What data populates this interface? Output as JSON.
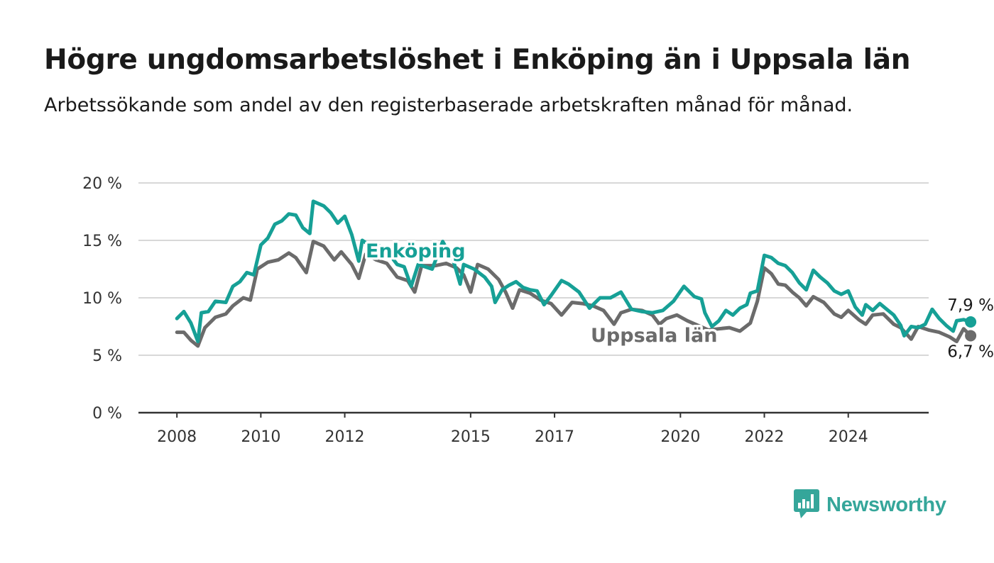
{
  "header": {
    "title": "Högre ungdomsarbetslöshet i Enköping än i Uppsala län",
    "subtitle": "Arbetssökande som andel av den registerbaserade arbetskraften månad för månad."
  },
  "brand": {
    "name": "Newsworthy",
    "icon": "bar-chart-speech-bubble-icon",
    "color": "#35a69a"
  },
  "chart_data": {
    "type": "line",
    "x_ticks": [
      "2008",
      "2010",
      "2012",
      "2015",
      "2017",
      "2020",
      "2022",
      "2024"
    ],
    "y_ticks": [
      "0 %",
      "5 %",
      "10 %",
      "15 %",
      "20 %"
    ],
    "ylim": [
      0,
      20
    ],
    "xlim": [
      "2007-02",
      "2025-12"
    ],
    "grid": true,
    "legend": "inline labels",
    "series": [
      {
        "name": "Enköping",
        "color": "#16a096",
        "end_label": "7,9 %",
        "points": [
          [
            "2008-01",
            8.2
          ],
          [
            "2008-03",
            8.8
          ],
          [
            "2008-05",
            7.8
          ],
          [
            "2008-07",
            6.2
          ],
          [
            "2008-08",
            8.7
          ],
          [
            "2008-10",
            8.8
          ],
          [
            "2008-12",
            9.7
          ],
          [
            "2009-03",
            9.6
          ],
          [
            "2009-05",
            11.0
          ],
          [
            "2009-07",
            11.4
          ],
          [
            "2009-09",
            12.2
          ],
          [
            "2009-11",
            12.0
          ],
          [
            "2010-01",
            14.6
          ],
          [
            "2010-03",
            15.2
          ],
          [
            "2010-05",
            16.4
          ],
          [
            "2010-07",
            16.7
          ],
          [
            "2010-09",
            17.3
          ],
          [
            "2010-11",
            17.2
          ],
          [
            "2011-01",
            16.1
          ],
          [
            "2011-03",
            15.6
          ],
          [
            "2011-04",
            18.4
          ],
          [
            "2011-07",
            18.0
          ],
          [
            "2011-09",
            17.4
          ],
          [
            "2011-11",
            16.5
          ],
          [
            "2012-01",
            17.1
          ],
          [
            "2012-03",
            15.5
          ],
          [
            "2012-05",
            13.2
          ],
          [
            "2012-06",
            15.0
          ],
          [
            "2012-08",
            14.6
          ],
          [
            "2012-10",
            14.6
          ],
          [
            "2012-12",
            14.4
          ],
          [
            "2013-02",
            13.7
          ],
          [
            "2013-04",
            12.9
          ],
          [
            "2013-06",
            12.7
          ],
          [
            "2013-08",
            11.0
          ],
          [
            "2013-10",
            12.9
          ],
          [
            "2014-02",
            12.5
          ],
          [
            "2014-05",
            14.9
          ],
          [
            "2014-08",
            13.3
          ],
          [
            "2014-10",
            11.2
          ],
          [
            "2014-11",
            12.9
          ],
          [
            "2015-02",
            12.5
          ],
          [
            "2015-05",
            11.8
          ],
          [
            "2015-07",
            11.0
          ],
          [
            "2015-08",
            9.6
          ],
          [
            "2015-10",
            10.7
          ],
          [
            "2015-12",
            11.1
          ],
          [
            "2016-02",
            11.4
          ],
          [
            "2016-04",
            10.9
          ],
          [
            "2016-06",
            10.7
          ],
          [
            "2016-08",
            10.6
          ],
          [
            "2016-10",
            9.4
          ],
          [
            "2016-12",
            10.2
          ],
          [
            "2017-03",
            11.5
          ],
          [
            "2017-05",
            11.2
          ],
          [
            "2017-08",
            10.5
          ],
          [
            "2017-11",
            9.1
          ],
          [
            "2018-02",
            10.0
          ],
          [
            "2018-05",
            10.0
          ],
          [
            "2018-08",
            10.5
          ],
          [
            "2018-11",
            9.0
          ],
          [
            "2019-02",
            8.8
          ],
          [
            "2019-05",
            8.7
          ],
          [
            "2019-08",
            8.9
          ],
          [
            "2019-11",
            9.7
          ],
          [
            "2020-02",
            11.0
          ],
          [
            "2020-05",
            10.1
          ],
          [
            "2020-07",
            9.9
          ],
          [
            "2020-08",
            8.7
          ],
          [
            "2020-10",
            7.5
          ],
          [
            "2020-12",
            8.0
          ],
          [
            "2021-02",
            8.9
          ],
          [
            "2021-04",
            8.5
          ],
          [
            "2021-06",
            9.1
          ],
          [
            "2021-08",
            9.4
          ],
          [
            "2021-09",
            10.4
          ],
          [
            "2021-11",
            10.6
          ],
          [
            "2022-01",
            13.7
          ],
          [
            "2022-03",
            13.5
          ],
          [
            "2022-05",
            13.0
          ],
          [
            "2022-07",
            12.8
          ],
          [
            "2022-09",
            12.2
          ],
          [
            "2022-11",
            11.3
          ],
          [
            "2023-01",
            10.7
          ],
          [
            "2023-03",
            12.4
          ],
          [
            "2023-05",
            11.8
          ],
          [
            "2023-07",
            11.3
          ],
          [
            "2023-09",
            10.6
          ],
          [
            "2023-11",
            10.3
          ],
          [
            "2024-01",
            10.6
          ],
          [
            "2024-03",
            9.2
          ],
          [
            "2024-05",
            8.5
          ],
          [
            "2024-06",
            9.4
          ],
          [
            "2024-08",
            8.9
          ],
          [
            "2024-10",
            9.5
          ],
          [
            "2024-12",
            9.0
          ],
          [
            "2025-02",
            8.5
          ],
          [
            "2025-04",
            7.6
          ],
          [
            "2025-05",
            6.7
          ],
          [
            "2025-07",
            7.5
          ],
          [
            "2025-09",
            7.4
          ],
          [
            "2025-11",
            7.7
          ],
          [
            "2026-01",
            9.0
          ],
          [
            "2026-03",
            8.2
          ],
          [
            "2026-05",
            7.6
          ],
          [
            "2026-07",
            7.1
          ],
          [
            "2026-08",
            8.0
          ],
          [
            "2026-10",
            8.1
          ],
          [
            "2026-12",
            7.9
          ]
        ]
      },
      {
        "name": "Uppsala län",
        "color": "#6b6b6b",
        "end_label": "6,7 %",
        "points": [
          [
            "2008-01",
            7.0
          ],
          [
            "2008-03",
            7.0
          ],
          [
            "2008-05",
            6.3
          ],
          [
            "2008-07",
            5.8
          ],
          [
            "2008-09",
            7.4
          ],
          [
            "2008-12",
            8.3
          ],
          [
            "2009-03",
            8.6
          ],
          [
            "2009-05",
            9.3
          ],
          [
            "2009-08",
            10.0
          ],
          [
            "2009-10",
            9.8
          ],
          [
            "2009-12",
            12.5
          ],
          [
            "2010-03",
            13.1
          ],
          [
            "2010-06",
            13.3
          ],
          [
            "2010-09",
            13.9
          ],
          [
            "2010-11",
            13.5
          ],
          [
            "2011-02",
            12.2
          ],
          [
            "2011-04",
            14.9
          ],
          [
            "2011-07",
            14.5
          ],
          [
            "2011-10",
            13.3
          ],
          [
            "2011-12",
            14.0
          ],
          [
            "2012-03",
            12.9
          ],
          [
            "2012-05",
            11.7
          ],
          [
            "2012-07",
            13.8
          ],
          [
            "2012-10",
            13.3
          ],
          [
            "2013-01",
            13.0
          ],
          [
            "2013-04",
            11.8
          ],
          [
            "2013-07",
            11.5
          ],
          [
            "2013-09",
            10.5
          ],
          [
            "2013-11",
            12.8
          ],
          [
            "2014-03",
            12.8
          ],
          [
            "2014-06",
            13.0
          ],
          [
            "2014-09",
            12.6
          ],
          [
            "2014-11",
            12.0
          ],
          [
            "2015-01",
            10.5
          ],
          [
            "2015-03",
            12.9
          ],
          [
            "2015-06",
            12.5
          ],
          [
            "2015-09",
            11.6
          ],
          [
            "2015-11",
            10.5
          ],
          [
            "2016-01",
            9.1
          ],
          [
            "2016-03",
            10.7
          ],
          [
            "2016-06",
            10.4
          ],
          [
            "2016-09",
            9.8
          ],
          [
            "2016-12",
            9.5
          ],
          [
            "2017-03",
            8.5
          ],
          [
            "2017-06",
            9.6
          ],
          [
            "2017-09",
            9.5
          ],
          [
            "2017-12",
            9.3
          ],
          [
            "2018-03",
            8.9
          ],
          [
            "2018-06",
            7.7
          ],
          [
            "2018-08",
            8.7
          ],
          [
            "2018-11",
            9.0
          ],
          [
            "2019-02",
            8.9
          ],
          [
            "2019-05",
            8.5
          ],
          [
            "2019-07",
            7.7
          ],
          [
            "2019-09",
            8.2
          ],
          [
            "2019-12",
            8.5
          ],
          [
            "2020-03",
            8.0
          ],
          [
            "2020-06",
            7.6
          ],
          [
            "2020-09",
            7.2
          ],
          [
            "2020-12",
            7.3
          ],
          [
            "2021-03",
            7.4
          ],
          [
            "2021-06",
            7.1
          ],
          [
            "2021-09",
            7.8
          ],
          [
            "2021-11",
            9.7
          ],
          [
            "2022-01",
            12.6
          ],
          [
            "2022-03",
            12.1
          ],
          [
            "2022-05",
            11.2
          ],
          [
            "2022-07",
            11.1
          ],
          [
            "2022-09",
            10.5
          ],
          [
            "2022-11",
            10.0
          ],
          [
            "2023-01",
            9.3
          ],
          [
            "2023-03",
            10.1
          ],
          [
            "2023-06",
            9.6
          ],
          [
            "2023-09",
            8.6
          ],
          [
            "2023-11",
            8.3
          ],
          [
            "2024-01",
            8.9
          ],
          [
            "2024-04",
            8.1
          ],
          [
            "2024-06",
            7.7
          ],
          [
            "2024-08",
            8.5
          ],
          [
            "2024-11",
            8.6
          ],
          [
            "2025-02",
            7.7
          ],
          [
            "2025-04",
            7.4
          ],
          [
            "2025-07",
            6.4
          ],
          [
            "2025-09",
            7.5
          ],
          [
            "2025-12",
            7.2
          ],
          [
            "2026-03",
            7.0
          ],
          [
            "2026-06",
            6.6
          ],
          [
            "2026-08",
            6.2
          ],
          [
            "2026-10",
            7.3
          ],
          [
            "2026-12",
            6.7
          ]
        ]
      }
    ]
  }
}
